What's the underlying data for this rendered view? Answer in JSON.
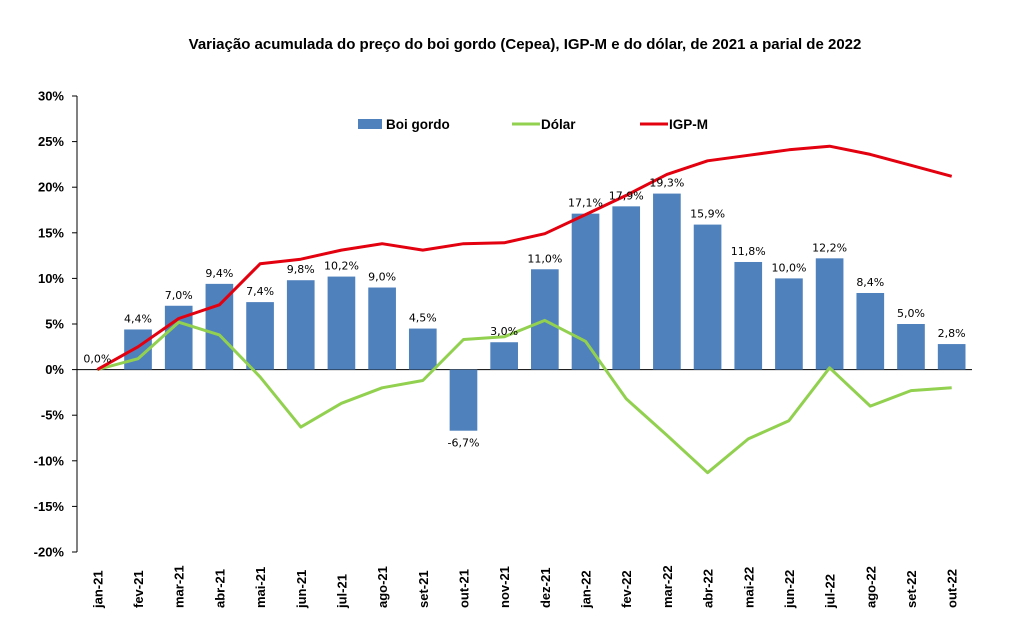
{
  "chart_data": {
    "type": "bar",
    "title": "Variação acumulada do preço do boi gordo (Cepea), IGP-M e do dólar, de 2021 a parial de 2022",
    "xlabel": "",
    "ylabel": "",
    "ylim": [
      -20,
      30
    ],
    "yticks": [
      30,
      25,
      20,
      15,
      10,
      5,
      0,
      -5,
      -10,
      -15,
      -20
    ],
    "ytick_labels": [
      "30%",
      "25%",
      "20%",
      "15%",
      "10%",
      "5%",
      "0%",
      "-5%",
      "-10%",
      "-15%",
      "-20%"
    ],
    "grid": false,
    "legend_position": "top-center",
    "categories": [
      "jan-21",
      "fev-21",
      "mar-21",
      "abr-21",
      "mai-21",
      "jun-21",
      "jul-21",
      "ago-21",
      "set-21",
      "out-21",
      "nov-21",
      "dez-21",
      "jan-22",
      "fev-22",
      "mar-22",
      "abr-22",
      "mai-22",
      "jun-22",
      "jul-22",
      "ago-22",
      "set-22",
      "out-22"
    ],
    "series": [
      {
        "name": "Boi gordo",
        "type": "bar",
        "color": "#4f81bd",
        "values": [
          0.0,
          4.4,
          7.0,
          9.4,
          7.4,
          9.8,
          10.2,
          9.0,
          4.5,
          -6.7,
          3.0,
          11.0,
          17.1,
          17.9,
          19.3,
          15.9,
          11.8,
          10.0,
          12.2,
          8.4,
          5.0,
          2.8
        ],
        "labels": [
          "0,0%",
          "4,4%",
          "7,0%",
          "9,4%",
          "7,4%",
          "9,8%",
          "10,2%",
          "9,0%",
          "4,5%",
          "-6,7%",
          "3,0%",
          "11,0%",
          "17,1%",
          "17,9%",
          "19,3%",
          "15,9%",
          "11,8%",
          "10,0%",
          "12,2%",
          "8,4%",
          "5,0%",
          "2,8%"
        ]
      },
      {
        "name": "Dólar",
        "type": "line",
        "color": "#92d050",
        "values": [
          0.0,
          1.2,
          5.2,
          3.8,
          -0.8,
          -6.3,
          -3.7,
          -2.0,
          -1.2,
          3.3,
          3.6,
          5.4,
          3.1,
          -3.2,
          -7.2,
          -11.3,
          -7.6,
          -5.6,
          0.2,
          -4.0,
          -2.3,
          -2.0
        ]
      },
      {
        "name": "IGP-M",
        "type": "line",
        "color": "#e3000f",
        "values": [
          0.0,
          2.5,
          5.6,
          7.1,
          11.6,
          12.1,
          13.1,
          13.8,
          13.1,
          13.8,
          13.9,
          14.9,
          17.0,
          19.1,
          21.4,
          22.9,
          23.5,
          24.1,
          24.5,
          23.6,
          22.4,
          21.2
        ]
      }
    ]
  }
}
